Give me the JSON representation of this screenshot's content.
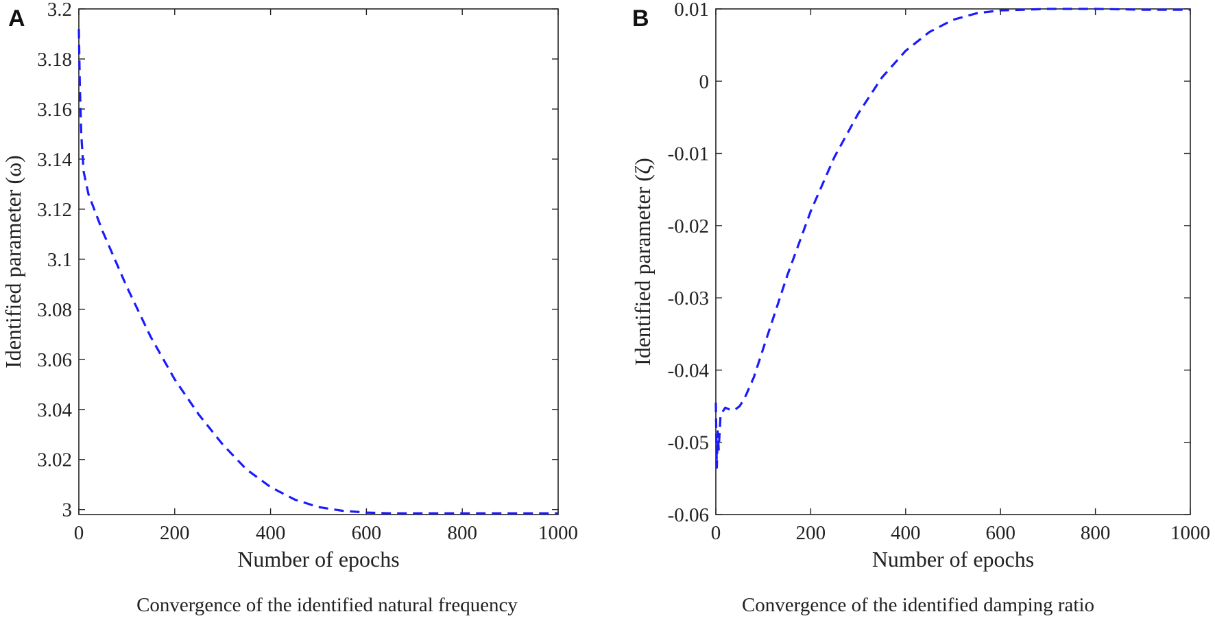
{
  "chart_data": [
    {
      "panel_label": "A",
      "type": "line",
      "xlabel": "Number of epochs",
      "ylabel": "Identified parameter (ω)",
      "caption": "Convergence of the identified natural frequency",
      "xlim": [
        0,
        1000
      ],
      "ylim": [
        2.998,
        3.2
      ],
      "xticks": [
        0,
        200,
        400,
        600,
        800,
        1000
      ],
      "xtick_labels": [
        "0",
        "200",
        "400",
        "600",
        "800",
        "1000"
      ],
      "yticks": [
        3,
        3.02,
        3.04,
        3.06,
        3.08,
        3.1,
        3.12,
        3.14,
        3.16,
        3.18,
        3.2
      ],
      "ytick_labels": [
        "3",
        "3.02",
        "3.04",
        "3.06",
        "3.08",
        "3.1",
        "3.12",
        "3.14",
        "3.16",
        "3.18",
        "3.2"
      ],
      "grid": false,
      "series": [
        {
          "color": "#1a1aff",
          "style": "dashed",
          "x": [
            0,
            2,
            5,
            10,
            20,
            50,
            100,
            150,
            200,
            250,
            300,
            350,
            400,
            450,
            500,
            550,
            600,
            650,
            700,
            800,
            900,
            1000
          ],
          "y": [
            3.192,
            3.17,
            3.15,
            3.135,
            3.126,
            3.111,
            3.089,
            3.069,
            3.052,
            3.038,
            3.026,
            3.016,
            3.009,
            3.004,
            3.001,
            2.9995,
            2.9988,
            2.9985,
            2.9985,
            2.9985,
            2.9985,
            2.9985
          ]
        }
      ]
    },
    {
      "panel_label": "B",
      "type": "line",
      "xlabel": "Number of epochs",
      "ylabel": "Identified parameter (ζ)",
      "caption": "Convergence of the identified damping ratio",
      "xlim": [
        0,
        1000
      ],
      "ylim": [
        -0.06,
        0.01
      ],
      "xticks": [
        0,
        200,
        400,
        600,
        800,
        1000
      ],
      "xtick_labels": [
        "0",
        "200",
        "400",
        "600",
        "800",
        "1000"
      ],
      "yticks": [
        -0.06,
        -0.05,
        -0.04,
        -0.03,
        -0.02,
        -0.01,
        0,
        0.01
      ],
      "ytick_labels": [
        "-0.06",
        "-0.05",
        "-0.04",
        "-0.03",
        "-0.02",
        "-0.01",
        "0",
        "0.01"
      ],
      "grid": false,
      "series": [
        {
          "color": "#1a1aff",
          "style": "dashed",
          "x": [
            0,
            2,
            4,
            6,
            10,
            20,
            30,
            40,
            50,
            60,
            80,
            100,
            150,
            200,
            250,
            300,
            350,
            400,
            450,
            500,
            550,
            600,
            650,
            700,
            800,
            900,
            1000
          ],
          "y": [
            -0.0445,
            -0.0535,
            -0.0485,
            -0.051,
            -0.0462,
            -0.0452,
            -0.0455,
            -0.0455,
            -0.045,
            -0.044,
            -0.041,
            -0.037,
            -0.027,
            -0.018,
            -0.0105,
            -0.0045,
            0.0005,
            0.0042,
            0.0068,
            0.0085,
            0.0094,
            0.0098,
            0.0099,
            0.01,
            0.01,
            0.0099,
            0.0099
          ]
        }
      ]
    }
  ]
}
